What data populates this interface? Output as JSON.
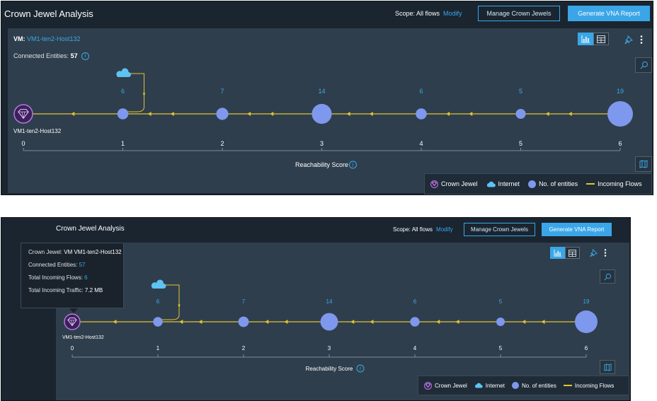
{
  "views": [
    {
      "header": {
        "title": "Crown Jewel Analysis",
        "scope_label": "Scope: All flows",
        "modify_label": "Modify",
        "manage_label": "Manage Crown Jewels",
        "generate_label": "Generate VNA Report"
      },
      "panel": {
        "vm_label": "VM:",
        "vm_name": "VM1-ten2-Host132",
        "connected_label": "Connected Entities:",
        "connected_count": "57"
      },
      "chart_data": {
        "type": "scatter",
        "xlabel": "Reachability Score",
        "x_ticks": [
          "0",
          "1",
          "2",
          "3",
          "4",
          "5",
          "6"
        ],
        "crown_jewel": {
          "x": 0,
          "label": "VM1-ten2-Host132"
        },
        "points": [
          {
            "x": 1,
            "value": 6,
            "label": "6",
            "internet": true
          },
          {
            "x": 2,
            "value": 7,
            "label": "7"
          },
          {
            "x": 3,
            "value": 14,
            "label": "14"
          },
          {
            "x": 4,
            "value": 6,
            "label": "6"
          },
          {
            "x": 5,
            "value": 5,
            "label": "5"
          },
          {
            "x": 6,
            "value": 19,
            "label": "19"
          }
        ]
      },
      "legend": {
        "crown_jewel": "Crown Jewel",
        "internet": "Internet",
        "entities": "No. of entities",
        "flows": "Incoming Flows"
      }
    },
    {
      "header": {
        "title": "Crown Jewel Analysis",
        "scope_label": "Scope: All flows",
        "modify_label": "Modify",
        "manage_label": "Manage Crown Jewels",
        "generate_label": "Generate VNA Report"
      },
      "tooltip": {
        "crown_jewel_label": "Crown Jewel:",
        "crown_jewel_value": "VM VM1-ten2-Host132",
        "connected_label": "Connected Entities:",
        "connected_value": "57",
        "flows_label": "Total Incoming Flows:",
        "flows_value": "6",
        "traffic_label": "Total Incoming Traffic:",
        "traffic_value": "7.2 MB"
      },
      "chart_data": {
        "type": "scatter",
        "xlabel": "Reachability Score",
        "x_ticks": [
          "0",
          "1",
          "2",
          "3",
          "4",
          "5",
          "6"
        ],
        "crown_jewel": {
          "x": 0,
          "label": "VM1-ten2-Host132"
        },
        "points": [
          {
            "x": 1,
            "value": 6,
            "label": "6",
            "internet": true
          },
          {
            "x": 2,
            "value": 7,
            "label": "7"
          },
          {
            "x": 3,
            "value": 14,
            "label": "14"
          },
          {
            "x": 4,
            "value": 6,
            "label": "6"
          },
          {
            "x": 5,
            "value": 5,
            "label": "5"
          },
          {
            "x": 6,
            "value": 19,
            "label": "19"
          }
        ]
      },
      "legend": {
        "crown_jewel": "Crown Jewel",
        "internet": "Internet",
        "entities": "No. of entities",
        "flows": "Incoming Flows"
      }
    }
  ],
  "colors": {
    "accent": "#3aa6e8",
    "node": "#7e98ee",
    "flow": "#e0c432",
    "crown_fill": "#3d1f5a",
    "crown_ring": "#b07adc",
    "cloud": "#5ec2f2",
    "tick_label": "#39a9e9"
  }
}
